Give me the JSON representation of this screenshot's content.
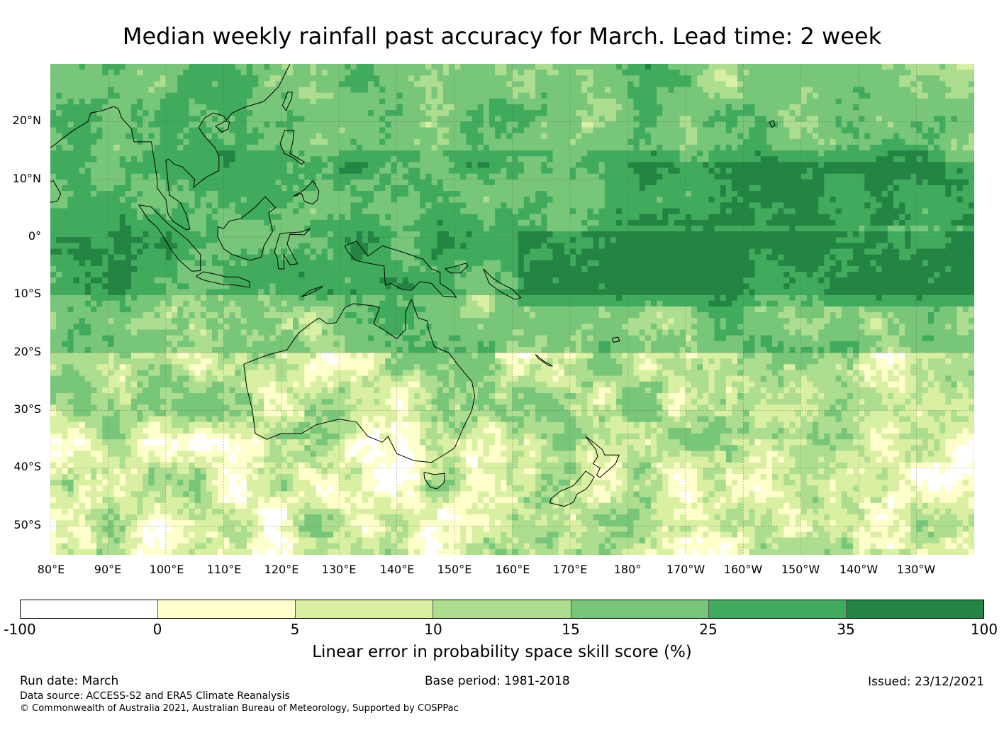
{
  "title": "Median weekly rainfall past accuracy for March. Lead time: 2 week",
  "map": {
    "lat_labels": [
      "20°N",
      "10°N",
      "0°",
      "10°S",
      "20°S",
      "30°S",
      "40°S",
      "50°S"
    ],
    "lon_labels": [
      "80°E",
      "90°E",
      "100°E",
      "110°E",
      "120°E",
      "130°E",
      "140°E",
      "150°E",
      "160°E",
      "170°E",
      "180°",
      "170°W",
      "160°W",
      "150°W",
      "140°W",
      "130°W"
    ],
    "extent": {
      "lon_min": 80,
      "lon_max": 240,
      "lat_min": -55,
      "lat_max": 30
    }
  },
  "colorbar": {
    "ticks": [
      "-100",
      "0",
      "5",
      "10",
      "15",
      "25",
      "35",
      "100"
    ],
    "colors": [
      "#ffffff",
      "#ffffcc",
      "#d9f0a3",
      "#addd8e",
      "#78c679",
      "#41ab5d",
      "#238443"
    ],
    "label": "Linear error in probability space skill score (%)"
  },
  "footer": {
    "run_date": "Run date: March",
    "base_period": "Base period: 1981-2018",
    "issued": "Issued: 23/12/2021",
    "data_source": "Data source: ACCESS-S2 and ERA5 Climate Reanalysis",
    "copyright": "© Commonwealth of Australia 2021, Australian Bureau of Meteorology, Supported by COSPPac"
  }
}
